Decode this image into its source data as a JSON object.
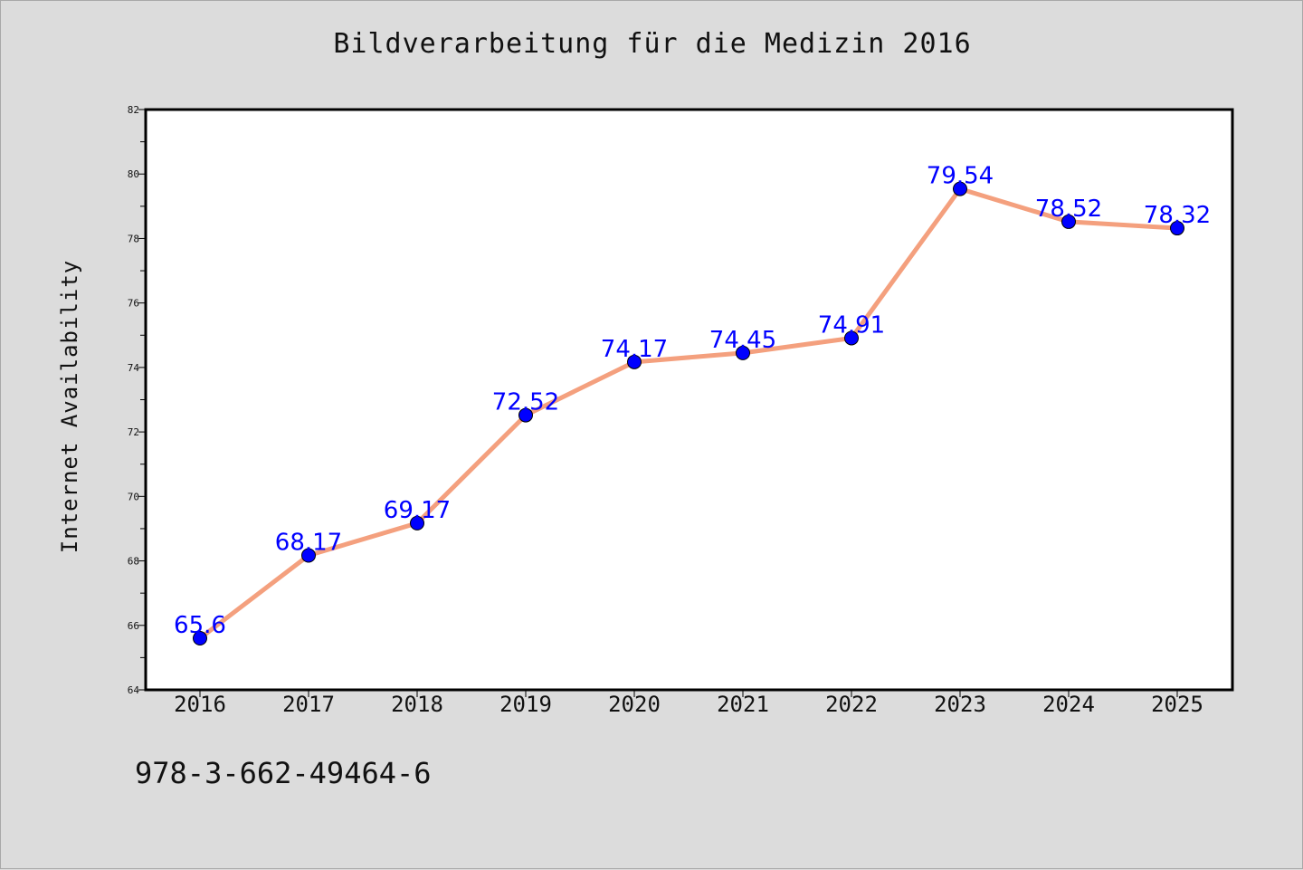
{
  "title": "Bildverarbeitung für die Medizin 2016",
  "footer_text": "978-3-662-49464-6",
  "colors": {
    "background": "#dcdcdc",
    "plot_background": "#ffffff",
    "line": "#f4a07e",
    "marker": "#0000ff",
    "data_label": "#0000ff"
  },
  "chart_data": {
    "type": "line",
    "title": "Bildverarbeitung für die Medizin 2016",
    "xlabel": "",
    "ylabel": "Internet Availability",
    "categories": [
      "2016",
      "2017",
      "2018",
      "2019",
      "2020",
      "2021",
      "2022",
      "2023",
      "2024",
      "2025"
    ],
    "series": [
      {
        "values": [
          65.6,
          68.17,
          69.17,
          72.52,
          74.17,
          74.45,
          74.91,
          79.54,
          78.52,
          78.32
        ],
        "labels": [
          "65.6",
          "68.17",
          "69.17",
          "72.52",
          "74.17",
          "74.45",
          "74.91",
          "79.54",
          "78.52",
          "78.32"
        ]
      }
    ],
    "ylim": [
      64,
      82
    ],
    "yticks": [
      "64",
      "66",
      "68",
      "70",
      "72",
      "74",
      "76",
      "78",
      "80",
      "82"
    ],
    "grid": false,
    "legend": "none"
  }
}
